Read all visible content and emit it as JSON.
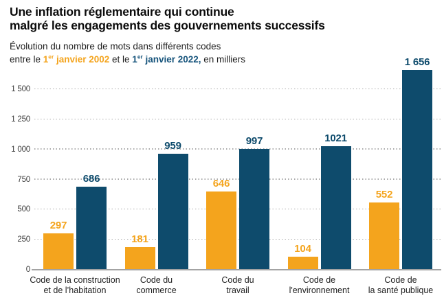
{
  "header": {
    "title_line1": "Une inflation réglementaire qui continue",
    "title_line2": "malgré les engagements des gouvernements successifs",
    "subtitle_line1": "Évolution du nombre de mots dans différents codes",
    "subtitle_line2_prefix": "entre le ",
    "date_2002_base": "1",
    "date_2002_sup": "er",
    "date_2002_rest": " janvier 2002",
    "subtitle_line2_middle": " et le ",
    "date_2022_base": "1",
    "date_2022_sup": "er",
    "date_2022_rest": " janvier 2022,",
    "subtitle_line2_suffix": " en milliers"
  },
  "colors": {
    "orange": "#f4a41d",
    "blue": "#0e4b6c",
    "date_orange_text": "#f4a41d",
    "date_blue_text": "#15537b",
    "grid": "#a9a9a9",
    "axis_line": "#a3a3a3",
    "tick_text": "#3c3c3c",
    "title_text": "#0c0c0c",
    "body_text": "#1d1d1d"
  },
  "chart_data": {
    "type": "bar",
    "title": "Une inflation réglementaire qui continue malgré les engagements des gouvernements successifs",
    "subtitle": "Évolution du nombre de mots dans différents codes entre le 1er janvier 2002 et le 1er janvier 2022, en milliers",
    "unit": "milliers de mots",
    "grid": "horizontal dotted",
    "legend_position": "none (series identified by colored dates in subtitle)",
    "categories": [
      "Code de la construction\net de l’habitation",
      "Code du\ncommerce",
      "Code du\ntravail",
      "Code de\nl'environnement",
      "Code de\nla santé publique"
    ],
    "series": [
      {
        "name": "1er janvier 2002",
        "color": "#f4a41d",
        "values": [
          297,
          181,
          646,
          104,
          552
        ],
        "value_labels": [
          "297",
          "181",
          "646",
          "104",
          "552"
        ]
      },
      {
        "name": "1er janvier 2022",
        "color": "#0e4b6c",
        "values": [
          686,
          959,
          997,
          1021,
          1656
        ],
        "value_labels": [
          "686",
          "959",
          "997",
          "1021",
          "1 656"
        ]
      }
    ],
    "y_axis": {
      "ticks": [
        0,
        250,
        500,
        750,
        1000,
        1250,
        1500
      ],
      "tick_labels": [
        "0",
        "250",
        "500",
        "750",
        "1 000",
        "1 250",
        "1 500"
      ],
      "ylim": [
        0,
        1656
      ]
    }
  }
}
